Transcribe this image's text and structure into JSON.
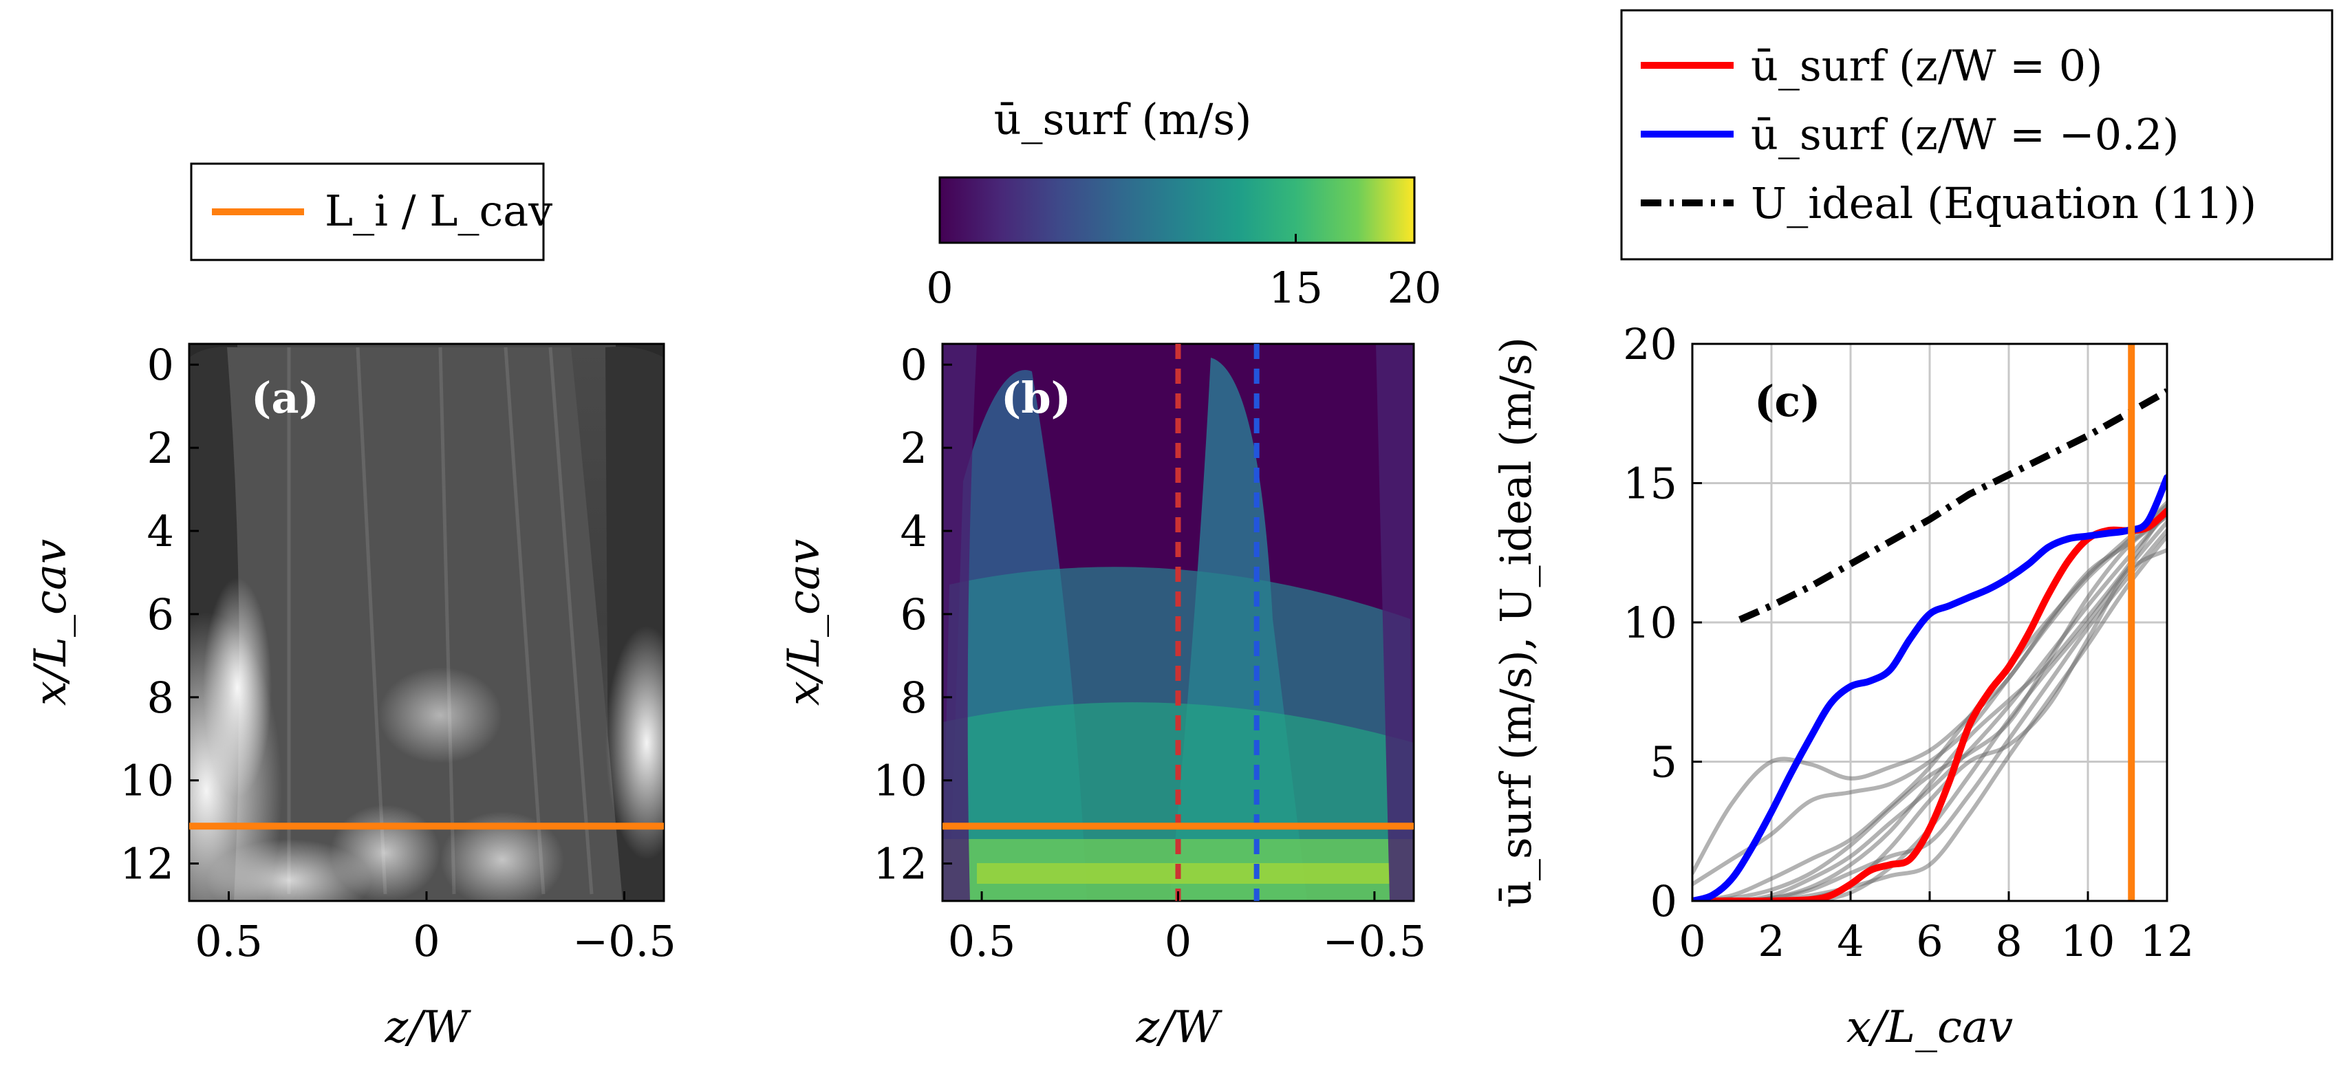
{
  "figure": {
    "legend_a": {
      "label": "L_i / L_cav",
      "color": "#ff7f0e"
    },
    "colorbar": {
      "title": "ū_surf (m/s)",
      "ticks": [
        0,
        15,
        20
      ],
      "range": [
        0,
        20
      ],
      "colormap": "viridis"
    },
    "legend_c": {
      "entries": [
        {
          "label": "ū_surf (z/W = 0)",
          "color": "#ff0000",
          "style": "solid"
        },
        {
          "label": "ū_surf (z/W = −0.2)",
          "color": "#0000ff",
          "style": "solid"
        },
        {
          "label": "U_ideal (Equation (11))",
          "color": "#000000",
          "style": "dash-dot",
          "ref": "11",
          "ref_color": "#1f77b4"
        }
      ]
    },
    "panel_a": {
      "label": "(a)",
      "xlabel": "z/W",
      "ylabel": "x/L_cav",
      "xticks": [
        0.5,
        0,
        -0.5
      ],
      "yticks": [
        0,
        2,
        4,
        6,
        8,
        10,
        12
      ],
      "xlim": [
        0.6,
        -0.6
      ],
      "ylim": [
        -0.5,
        12.9
      ],
      "Li_line_x_over_Lcav": 11.1
    },
    "panel_b": {
      "label": "(b)",
      "xlabel": "z/W",
      "ylabel": "x/L_cav",
      "xticks": [
        0.5,
        0,
        -0.5
      ],
      "yticks": [
        0,
        2,
        4,
        6,
        8,
        10,
        12
      ],
      "xlim": [
        0.6,
        -0.6
      ],
      "ylim": [
        -0.5,
        12.9
      ],
      "Li_line_x_over_Lcav": 11.1,
      "probe_lines": [
        {
          "z_over_W": 0,
          "color": "#cc3333"
        },
        {
          "z_over_W": -0.2,
          "color": "#2255dd"
        }
      ]
    },
    "panel_c": {
      "label": "(c)",
      "xlabel": "x/L_cav",
      "ylabel": "ū_surf (m/s), U_ideal (m/s)",
      "xticks": [
        0,
        2,
        4,
        6,
        8,
        10,
        12
      ],
      "yticks": [
        0,
        5,
        10,
        15,
        20
      ],
      "xlim": [
        0,
        12
      ],
      "ylim": [
        0,
        20
      ],
      "Li_line_x": 11.1
    }
  },
  "chart_data": {
    "type": "line",
    "title": "",
    "xlabel": "x/L_cav",
    "ylabel": "ū_surf (m/s), U_ideal (m/s)",
    "xlim": [
      0,
      12
    ],
    "ylim": [
      0,
      20
    ],
    "grid": true,
    "series": [
      {
        "name": "ū_surf (z/W = 0)",
        "color": "#ff0000",
        "x": [
          0,
          1,
          2,
          3,
          3.5,
          4,
          4.5,
          5,
          5.5,
          6,
          6.5,
          7,
          7.5,
          8,
          8.5,
          9,
          9.5,
          10,
          10.5,
          11,
          11.5,
          12
        ],
        "y": [
          0,
          0,
          0,
          0.05,
          0.2,
          0.6,
          1.1,
          1.3,
          1.5,
          2.6,
          4.3,
          6.3,
          7.5,
          8.4,
          9.6,
          11.0,
          12.2,
          13.0,
          13.3,
          13.3,
          13.4,
          14.0
        ]
      },
      {
        "name": "ū_surf (z/W = −0.2)",
        "color": "#0000ff",
        "x": [
          0,
          0.5,
          1,
          1.5,
          2,
          2.5,
          3,
          3.5,
          4,
          4.5,
          5,
          5.5,
          6,
          6.5,
          7,
          7.5,
          8,
          8.5,
          9,
          9.5,
          10,
          10.5,
          11,
          11.5,
          12
        ],
        "y": [
          0,
          0.2,
          0.8,
          1.9,
          3.2,
          4.6,
          5.9,
          7.1,
          7.7,
          7.9,
          8.3,
          9.4,
          10.3,
          10.6,
          10.9,
          11.2,
          11.6,
          12.1,
          12.7,
          13.0,
          13.1,
          13.2,
          13.3,
          13.6,
          15.2
        ]
      },
      {
        "name": "U_ideal (Equation (11))",
        "color": "#000000",
        "x": [
          1.2,
          2,
          3,
          4,
          5,
          6,
          7,
          8,
          9,
          10,
          11,
          12
        ],
        "y": [
          10.1,
          10.6,
          11.3,
          12.1,
          12.9,
          13.7,
          14.6,
          15.3,
          16.0,
          16.7,
          17.5,
          18.3
        ]
      },
      {
        "name": "",
        "color": "#666666",
        "x": [
          0,
          1,
          2,
          3,
          4,
          5,
          6,
          7,
          8,
          9,
          10,
          11,
          12
        ],
        "y": [
          1.0,
          3.5,
          5.0,
          4.9,
          4.4,
          4.8,
          5.4,
          6.6,
          8.0,
          10.0,
          11.8,
          12.8,
          13.9
        ]
      },
      {
        "name": "",
        "color": "#666666",
        "x": [
          0,
          1,
          2,
          3,
          4,
          5,
          6,
          7,
          8,
          9,
          10,
          11,
          12
        ],
        "y": [
          0.6,
          1.5,
          2.4,
          3.6,
          3.9,
          4.2,
          5.0,
          6.2,
          8.0,
          9.9,
          11.6,
          12.9,
          14.3
        ]
      },
      {
        "name": "",
        "color": "#666666",
        "x": [
          0,
          1,
          2,
          3,
          4,
          5,
          6,
          7,
          8,
          9,
          10,
          11,
          12
        ],
        "y": [
          0,
          0.2,
          0.8,
          1.5,
          2.2,
          3.4,
          4.8,
          6.6,
          8.4,
          10.1,
          11.7,
          13.0,
          14.2
        ]
      },
      {
        "name": "",
        "color": "#666666",
        "x": [
          0,
          1,
          2,
          3,
          4,
          5,
          6,
          7,
          8,
          9,
          10,
          11,
          12
        ],
        "y": [
          0,
          0,
          0.2,
          0.8,
          1.6,
          2.8,
          4.0,
          5.4,
          7.0,
          8.8,
          10.6,
          12.3,
          13.9
        ]
      },
      {
        "name": "",
        "color": "#666666",
        "x": [
          0,
          1,
          2,
          3,
          4,
          5,
          6,
          7,
          8,
          9,
          10,
          11,
          12
        ],
        "y": [
          0,
          0,
          0.1,
          0.4,
          1.0,
          1.6,
          2.1,
          3.8,
          5.8,
          7.8,
          9.8,
          11.6,
          13.3
        ]
      },
      {
        "name": "",
        "color": "#666666",
        "x": [
          0,
          1,
          2,
          3,
          4,
          5,
          6,
          7,
          8,
          9,
          10,
          11,
          12
        ],
        "y": [
          0,
          0,
          0,
          0.2,
          0.5,
          0.9,
          1.3,
          3.1,
          5.2,
          7.2,
          9.2,
          11.3,
          13.1
        ]
      },
      {
        "name": "",
        "color": "#666666",
        "x": [
          0,
          1,
          2,
          3,
          4,
          5,
          6,
          7,
          8,
          9,
          10,
          11,
          12
        ],
        "y": [
          0,
          0,
          0.1,
          0.5,
          1.3,
          2.5,
          4.2,
          5.9,
          7.2,
          8.5,
          10.2,
          12.0,
          14.1
        ]
      },
      {
        "name": "",
        "color": "#666666",
        "x": [
          0,
          1,
          2,
          3,
          4,
          5,
          6,
          7,
          8,
          9,
          10,
          11,
          12
        ],
        "y": [
          0,
          0.1,
          0.4,
          1.0,
          2.0,
          3.3,
          4.5,
          5.3,
          6.4,
          8.6,
          10.9,
          12.7,
          13.8
        ]
      },
      {
        "name": "",
        "color": "#666666",
        "x": [
          0,
          1,
          2,
          3,
          4,
          5,
          6,
          7,
          8,
          9,
          10,
          11,
          12
        ],
        "y": [
          0,
          0,
          0,
          0.1,
          0.6,
          1.9,
          3.6,
          5.0,
          5.6,
          7.0,
          9.4,
          11.8,
          12.6
        ]
      },
      {
        "name": "",
        "color": "#666666",
        "x": [
          0,
          1,
          2,
          3,
          4,
          5,
          6,
          7,
          8,
          9,
          10,
          11,
          12
        ],
        "y": [
          0,
          0,
          0,
          0,
          0.3,
          1.2,
          2.6,
          4.5,
          6.5,
          8.3,
          10.0,
          11.9,
          13.6
        ]
      }
    ]
  }
}
